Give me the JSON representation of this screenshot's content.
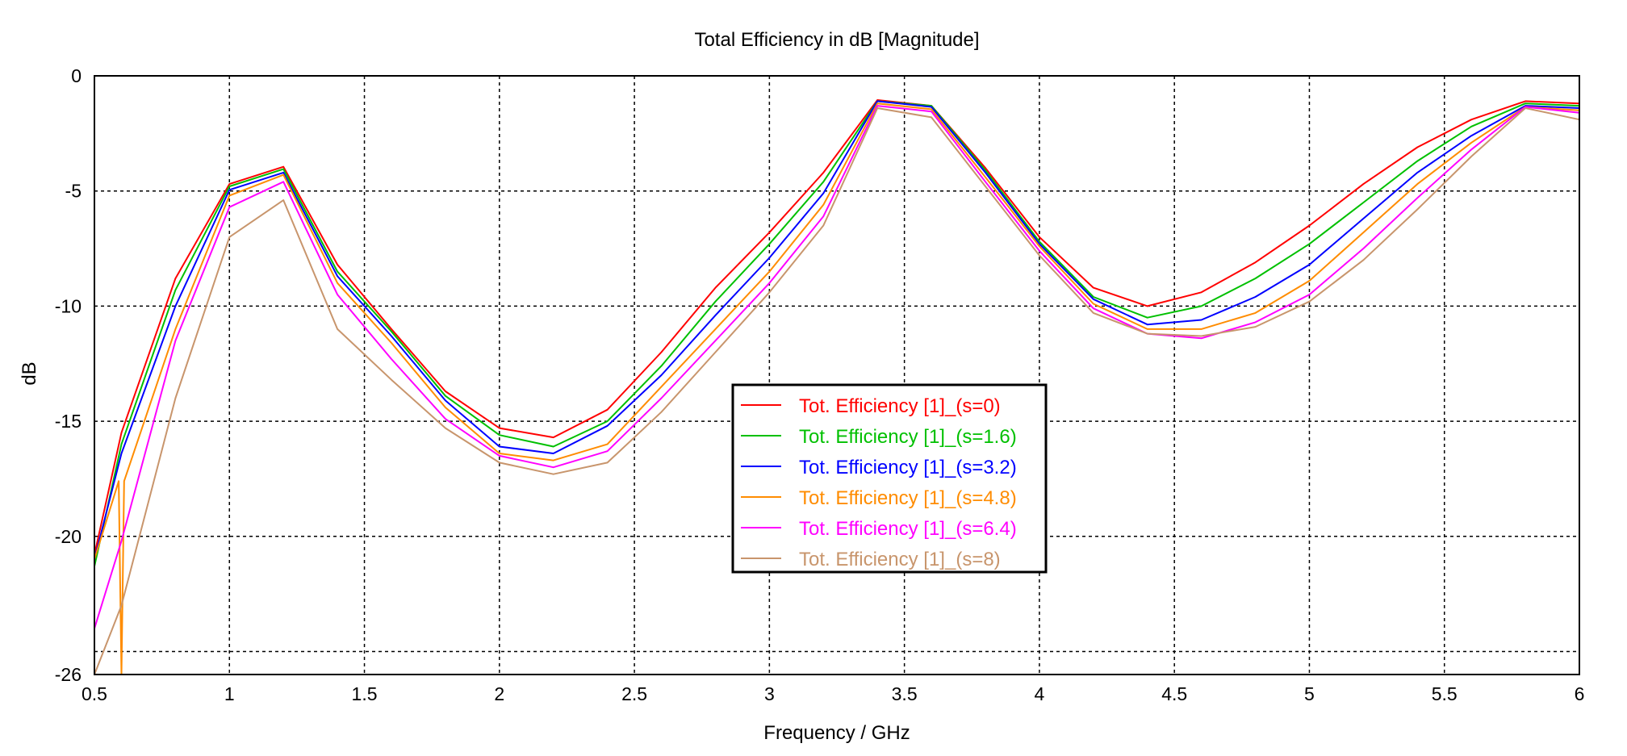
{
  "chart_data": {
    "type": "line",
    "title": "Total Efficiency in dB [Magnitude]",
    "xlabel": "Frequency / GHz",
    "ylabel": "dB",
    "xlim": [
      0.5,
      6
    ],
    "ylim": [
      -26,
      0
    ],
    "x_ticks": [
      0.5,
      1,
      1.5,
      2,
      2.5,
      3,
      3.5,
      4,
      4.5,
      5,
      5.5,
      6
    ],
    "x_tick_labels": [
      "0.5",
      "1",
      "1.5",
      "2",
      "2.5",
      "3",
      "3.5",
      "4",
      "4.5",
      "5",
      "5.5",
      "6"
    ],
    "y_ticks": [
      0,
      -5,
      -10,
      -15,
      -20,
      -26
    ],
    "y_tick_labels": [
      "0",
      "-5",
      "-10",
      "-15",
      "-20",
      "-26"
    ],
    "y_grid": [
      -5,
      -10,
      -15,
      -20,
      -25
    ],
    "grid": true,
    "legend_position": "center",
    "series": [
      {
        "name": "Tot. Efficiency [1]_(s=0)",
        "color": "#ff0000",
        "x": [
          0.5,
          0.6,
          0.8,
          1.0,
          1.2,
          1.4,
          1.6,
          1.8,
          2.0,
          2.2,
          2.4,
          2.6,
          2.8,
          3.0,
          3.2,
          3.4,
          3.6,
          3.8,
          4.0,
          4.2,
          4.4,
          4.6,
          4.8,
          5.0,
          5.2,
          5.4,
          5.6,
          5.8,
          6.0
        ],
        "y": [
          -20.8,
          -15.5,
          -8.8,
          -4.7,
          -3.95,
          -8.2,
          -11.0,
          -13.7,
          -15.3,
          -15.7,
          -14.5,
          -12.0,
          -9.2,
          -6.8,
          -4.2,
          -1.05,
          -1.3,
          -4.0,
          -7.0,
          -9.2,
          -10.0,
          -9.4,
          -8.1,
          -6.5,
          -4.7,
          -3.1,
          -1.9,
          -1.1,
          -1.2
        ]
      },
      {
        "name": "Tot. Efficiency [1]_(s=1.6)",
        "color": "#00c000",
        "x": [
          0.5,
          0.6,
          0.8,
          1.0,
          1.2,
          1.4,
          1.6,
          1.8,
          2.0,
          2.2,
          2.4,
          2.6,
          2.8,
          3.0,
          3.2,
          3.4,
          3.6,
          3.8,
          4.0,
          4.2,
          4.4,
          4.6,
          4.8,
          5.0,
          5.2,
          5.4,
          5.6,
          5.8,
          6.0
        ],
        "y": [
          -21.3,
          -16.0,
          -9.3,
          -4.8,
          -4.05,
          -8.5,
          -11.1,
          -13.9,
          -15.6,
          -16.1,
          -15.0,
          -12.6,
          -9.8,
          -7.3,
          -4.6,
          -1.1,
          -1.3,
          -4.1,
          -7.2,
          -9.6,
          -10.5,
          -10.0,
          -8.8,
          -7.3,
          -5.5,
          -3.7,
          -2.2,
          -1.2,
          -1.3
        ]
      },
      {
        "name": "Tot. Efficiency [1]_(s=3.2)",
        "color": "#0000ff",
        "x": [
          0.5,
          0.6,
          0.8,
          1.0,
          1.2,
          1.4,
          1.6,
          1.8,
          2.0,
          2.2,
          2.4,
          2.6,
          2.8,
          3.0,
          3.2,
          3.4,
          3.6,
          3.8,
          4.0,
          4.2,
          4.4,
          4.6,
          4.8,
          5.0,
          5.2,
          5.4,
          5.6,
          5.8,
          6.0
        ],
        "y": [
          -21.0,
          -16.4,
          -10.0,
          -4.95,
          -4.2,
          -8.7,
          -11.3,
          -14.1,
          -16.1,
          -16.4,
          -15.2,
          -13.0,
          -10.4,
          -7.9,
          -5.1,
          -1.1,
          -1.35,
          -4.2,
          -7.3,
          -9.7,
          -10.8,
          -10.6,
          -9.6,
          -8.2,
          -6.2,
          -4.2,
          -2.6,
          -1.3,
          -1.4
        ]
      },
      {
        "name": "Tot. Efficiency [1]_(s=4.8)",
        "color": "#ff8c00",
        "x": [
          0.5,
          0.59,
          0.6,
          0.61,
          0.8,
          1.0,
          1.2,
          1.4,
          1.6,
          1.8,
          2.0,
          2.2,
          2.4,
          2.6,
          2.8,
          3.0,
          3.2,
          3.4,
          3.6,
          3.8,
          4.0,
          4.2,
          4.4,
          4.6,
          4.8,
          5.0,
          5.2,
          5.4,
          5.6,
          5.8,
          6.0
        ],
        "y": [
          -21.0,
          -17.6,
          -26.0,
          -17.6,
          -11.0,
          -5.2,
          -4.3,
          -9.0,
          -11.6,
          -14.4,
          -16.4,
          -16.7,
          -16.0,
          -13.5,
          -11.0,
          -8.5,
          -5.6,
          -1.2,
          -1.45,
          -4.4,
          -7.4,
          -9.9,
          -11.0,
          -11.0,
          -10.3,
          -8.9,
          -6.8,
          -4.7,
          -2.9,
          -1.35,
          -1.5
        ]
      },
      {
        "name": "Tot. Efficiency [1]_(s=6.4)",
        "color": "#ff00ff",
        "x": [
          0.5,
          0.6,
          0.8,
          1.0,
          1.2,
          1.4,
          1.6,
          1.8,
          2.0,
          2.2,
          2.4,
          2.6,
          2.8,
          3.0,
          3.2,
          3.4,
          3.6,
          3.8,
          4.0,
          4.2,
          4.4,
          4.6,
          4.8,
          5.0,
          5.2,
          5.4,
          5.6,
          5.8,
          6.0
        ],
        "y": [
          -24.0,
          -20.2,
          -11.5,
          -5.7,
          -4.6,
          -9.5,
          -12.3,
          -14.9,
          -16.5,
          -17.0,
          -16.3,
          -14.0,
          -11.5,
          -9.0,
          -6.1,
          -1.3,
          -1.55,
          -4.6,
          -7.6,
          -10.1,
          -11.2,
          -11.4,
          -10.7,
          -9.5,
          -7.5,
          -5.3,
          -3.2,
          -1.35,
          -1.6
        ]
      },
      {
        "name": "Tot. Efficiency [1]_(s=8)",
        "color": "#c8956c",
        "x": [
          0.5,
          0.6,
          0.8,
          1.0,
          1.2,
          1.4,
          1.6,
          1.8,
          2.0,
          2.2,
          2.4,
          2.6,
          2.8,
          3.0,
          3.2,
          3.4,
          3.6,
          3.8,
          4.0,
          4.2,
          4.4,
          4.6,
          4.8,
          5.0,
          5.2,
          5.4,
          5.6,
          5.8,
          6.0
        ],
        "y": [
          -26.0,
          -23.0,
          -14.0,
          -7.0,
          -5.4,
          -11.0,
          -13.2,
          -15.3,
          -16.8,
          -17.3,
          -16.8,
          -14.6,
          -12.0,
          -9.4,
          -6.5,
          -1.4,
          -1.8,
          -4.8,
          -7.8,
          -10.3,
          -11.2,
          -11.3,
          -10.9,
          -9.8,
          -8.0,
          -5.8,
          -3.5,
          -1.4,
          -1.9
        ]
      }
    ]
  }
}
